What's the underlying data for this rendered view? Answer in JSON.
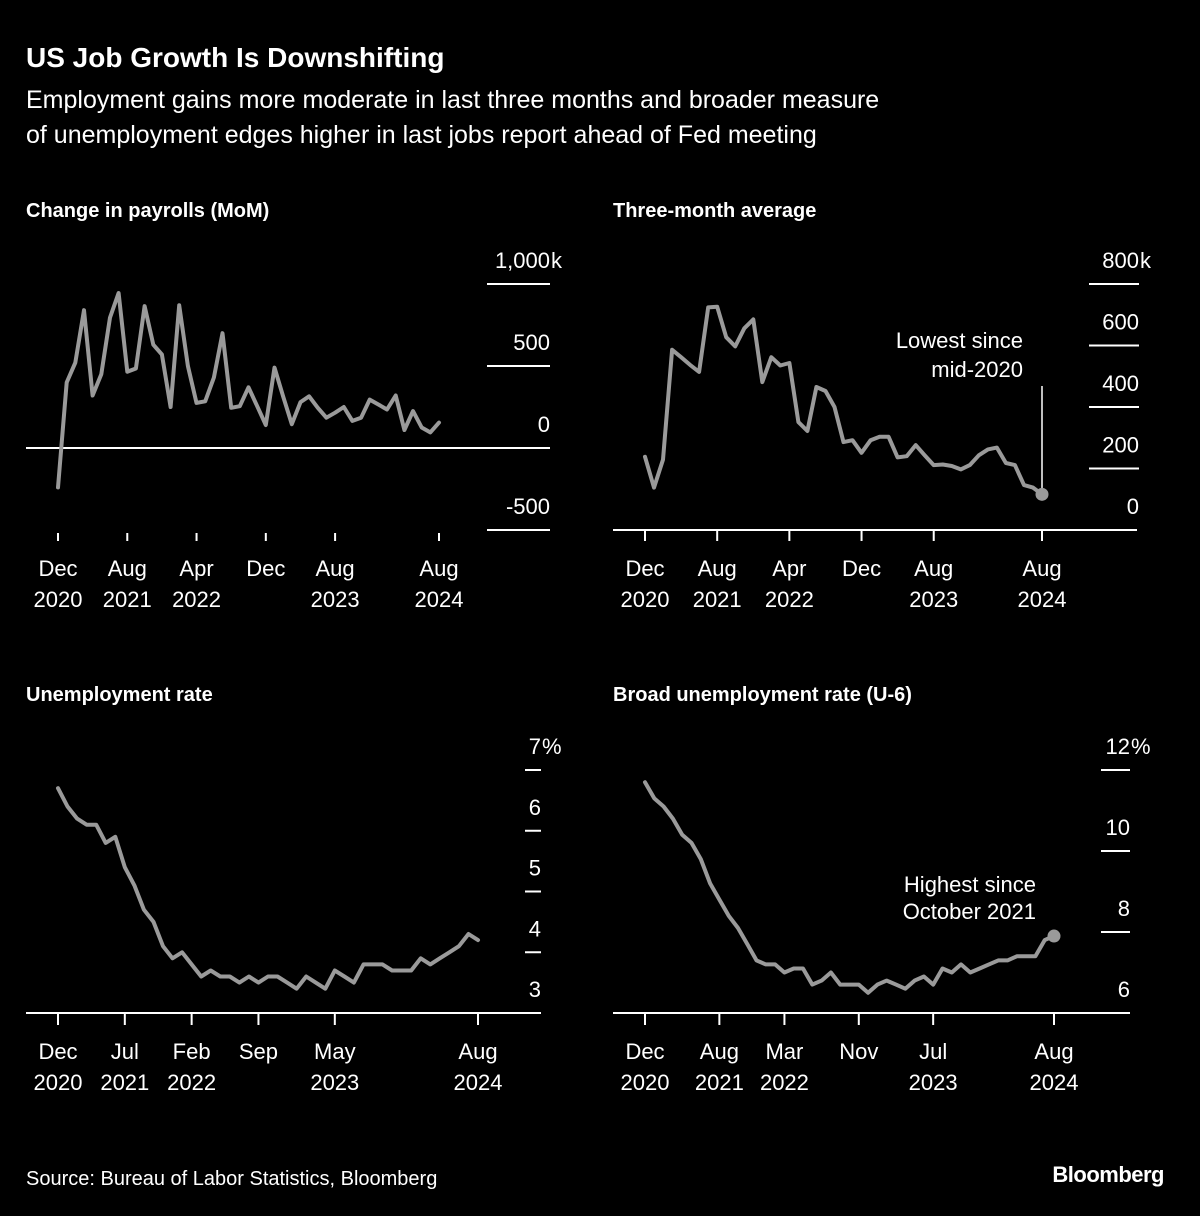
{
  "title": "US Job Growth Is Downshifting",
  "subtitle": [
    "Employment gains more moderate in last three months and broader measure",
    "of unemployment edges higher in last jobs report ahead of Fed meeting"
  ],
  "source": "Source: Bureau of Labor Statistics, Bloomberg",
  "brand": "Bloomberg",
  "line_color": "#9a9a9a",
  "chart_data": [
    {
      "type": "line",
      "title": "Change in payrolls (MoM)",
      "x_range": [
        "Dec 2020",
        "Aug 2024"
      ],
      "ylim": [
        -500,
        1000
      ],
      "yticks": [
        {
          "v": 1000,
          "label": "1,000",
          "suffix": "k"
        },
        {
          "v": 500,
          "label": "500"
        },
        {
          "v": 0,
          "label": "0"
        },
        {
          "v": -500,
          "label": "-500"
        }
      ],
      "xticks": [
        {
          "i": 0,
          "lines": [
            "Dec",
            "2020"
          ]
        },
        {
          "i": 8,
          "lines": [
            "Aug",
            "2021"
          ]
        },
        {
          "i": 16,
          "lines": [
            "Apr",
            "2022"
          ]
        },
        {
          "i": 24,
          "lines": [
            "Dec",
            ""
          ]
        },
        {
          "i": 32,
          "lines": [
            "Aug",
            "2023"
          ]
        },
        {
          "i": 44,
          "lines": [
            "Aug",
            "2024"
          ]
        }
      ],
      "values": [
        -240,
        400,
        520,
        840,
        320,
        450,
        795,
        945,
        465,
        485,
        865,
        630,
        570,
        250,
        870,
        500,
        275,
        285,
        430,
        700,
        245,
        255,
        370,
        255,
        140,
        490,
        315,
        145,
        280,
        315,
        245,
        185,
        215,
        250,
        165,
        185,
        295,
        265,
        235,
        320,
        110,
        225,
        125,
        95,
        155
      ]
    },
    {
      "type": "line",
      "title": "Three-month average",
      "x_range": [
        "Dec 2020",
        "Aug 2024"
      ],
      "ylim": [
        0,
        800
      ],
      "yticks": [
        {
          "v": 800,
          "label": "800",
          "suffix": "k"
        },
        {
          "v": 600,
          "label": "600"
        },
        {
          "v": 400,
          "label": "400"
        },
        {
          "v": 200,
          "label": "200"
        },
        {
          "v": 0,
          "label": "0"
        }
      ],
      "xticks": [
        {
          "i": 0,
          "lines": [
            "Dec",
            "2020"
          ]
        },
        {
          "i": 8,
          "lines": [
            "Aug",
            "2021"
          ]
        },
        {
          "i": 16,
          "lines": [
            "Apr",
            "2022"
          ]
        },
        {
          "i": 24,
          "lines": [
            "Dec",
            ""
          ]
        },
        {
          "i": 32,
          "lines": [
            "Aug",
            "2023"
          ]
        },
        {
          "i": 44,
          "lines": [
            "Aug",
            "2024"
          ]
        }
      ],
      "values": [
        238,
        138,
        229,
        586,
        562,
        537,
        514,
        724,
        726,
        627,
        597,
        656,
        685,
        481,
        562,
        535,
        543,
        351,
        322,
        465,
        452,
        400,
        286,
        292,
        251,
        292,
        303,
        303,
        236,
        240,
        276,
        243,
        211,
        213,
        208,
        197,
        211,
        243,
        262,
        268,
        218,
        211,
        146,
        138,
        116
      ],
      "annotation": {
        "lines": [
          "Lowest since",
          "mid-2020"
        ],
        "point_index": 44
      }
    },
    {
      "type": "line",
      "title": "Unemployment rate",
      "x_range": [
        "Dec 2020",
        "Aug 2024"
      ],
      "ylim": [
        3,
        7
      ],
      "yticks": [
        {
          "v": 7,
          "label": "7",
          "suffix": "%"
        },
        {
          "v": 6,
          "label": "6"
        },
        {
          "v": 5,
          "label": "5"
        },
        {
          "v": 4,
          "label": "4"
        },
        {
          "v": 3,
          "label": "3"
        }
      ],
      "xticks": [
        {
          "i": 0,
          "lines": [
            "Dec",
            "2020"
          ]
        },
        {
          "i": 7,
          "lines": [
            "Jul",
            "2021"
          ]
        },
        {
          "i": 14,
          "lines": [
            "Feb",
            "2022"
          ]
        },
        {
          "i": 21,
          "lines": [
            "Sep",
            ""
          ]
        },
        {
          "i": 29,
          "lines": [
            "May",
            "2023"
          ]
        },
        {
          "i": 44,
          "lines": [
            "Aug",
            "2024"
          ]
        }
      ],
      "values": [
        6.7,
        6.4,
        6.2,
        6.1,
        6.1,
        5.8,
        5.9,
        5.4,
        5.1,
        4.7,
        4.5,
        4.1,
        3.9,
        4.0,
        3.8,
        3.6,
        3.7,
        3.6,
        3.6,
        3.5,
        3.6,
        3.5,
        3.6,
        3.6,
        3.5,
        3.4,
        3.6,
        3.5,
        3.4,
        3.7,
        3.6,
        3.5,
        3.8,
        3.8,
        3.8,
        3.7,
        3.7,
        3.7,
        3.9,
        3.8,
        3.9,
        4.0,
        4.1,
        4.3,
        4.2
      ]
    },
    {
      "type": "line",
      "title": "Broad unemployment rate (U-6)",
      "x_range": [
        "Dec 2020",
        "Aug 2024"
      ],
      "ylim": [
        6,
        12
      ],
      "yticks": [
        {
          "v": 12,
          "label": "12",
          "suffix": "%"
        },
        {
          "v": 10,
          "label": "10"
        },
        {
          "v": 8,
          "label": "8"
        },
        {
          "v": 6,
          "label": "6"
        }
      ],
      "xticks": [
        {
          "i": 0,
          "lines": [
            "Dec",
            "2020"
          ]
        },
        {
          "i": 8,
          "lines": [
            "Aug",
            "2021"
          ]
        },
        {
          "i": 15,
          "lines": [
            "Mar",
            "2022"
          ]
        },
        {
          "i": 23,
          "lines": [
            "Nov",
            ""
          ]
        },
        {
          "i": 31,
          "lines": [
            "Jul",
            "2023"
          ]
        },
        {
          "i": 44,
          "lines": [
            "Aug",
            "2024"
          ]
        }
      ],
      "values": [
        11.7,
        11.3,
        11.1,
        10.8,
        10.4,
        10.2,
        9.8,
        9.2,
        8.8,
        8.4,
        8.1,
        7.7,
        7.3,
        7.2,
        7.2,
        7.0,
        7.1,
        7.1,
        6.7,
        6.8,
        7.0,
        6.7,
        6.7,
        6.7,
        6.5,
        6.7,
        6.8,
        6.7,
        6.6,
        6.8,
        6.9,
        6.7,
        7.1,
        7.0,
        7.2,
        7.0,
        7.1,
        7.2,
        7.3,
        7.3,
        7.4,
        7.4,
        7.4,
        7.8,
        7.9
      ],
      "annotation": {
        "lines": [
          "Highest since",
          "October 2021"
        ],
        "point_index": 44
      }
    }
  ]
}
